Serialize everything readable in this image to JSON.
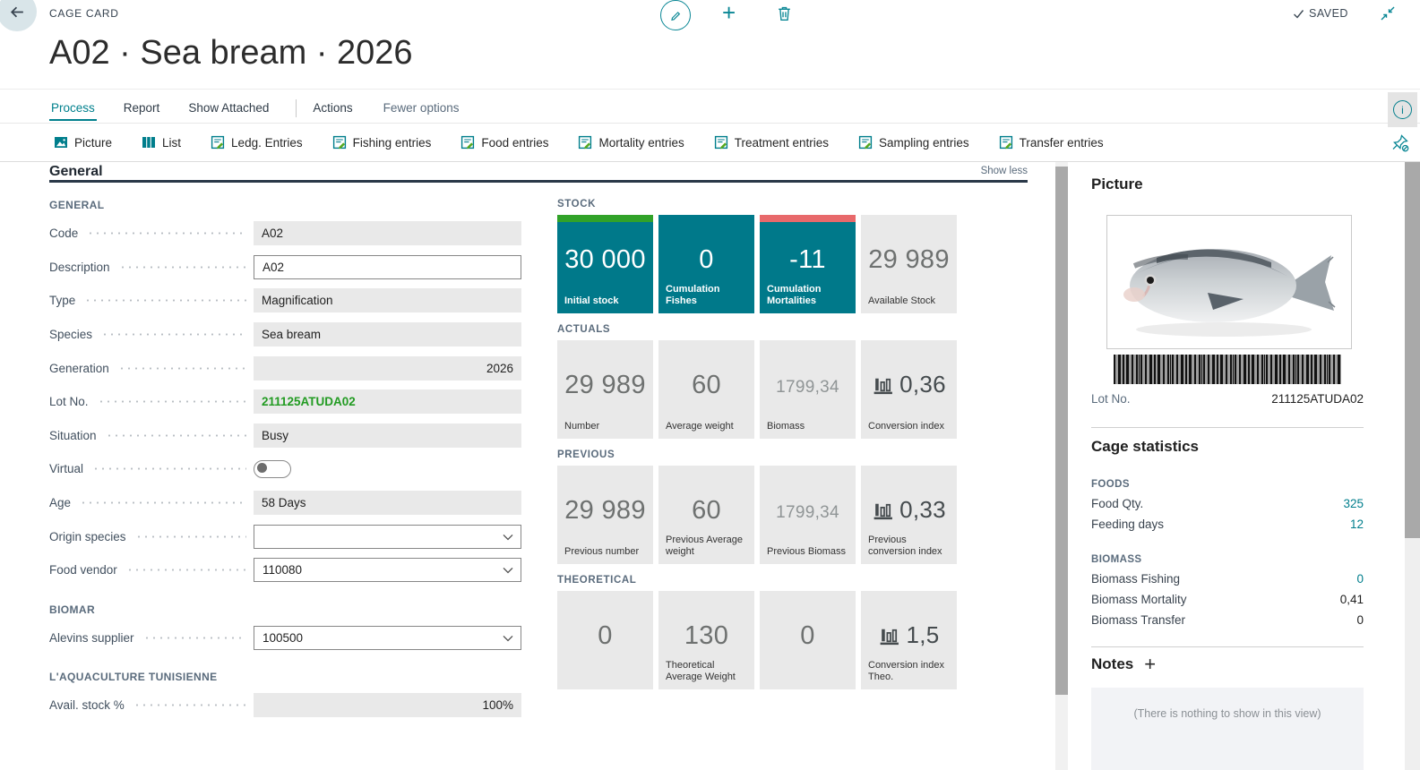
{
  "header": {
    "caption": "CAGE CARD",
    "saved": "SAVED",
    "title": "A02 · Sea bream · 2026"
  },
  "menu": {
    "tabs": [
      {
        "label": "Process",
        "active": true
      },
      {
        "label": "Report",
        "active": false
      },
      {
        "label": "Show Attached",
        "active": false
      }
    ],
    "actions_label": "Actions",
    "fewer_options_label": "Fewer options"
  },
  "ribbon": [
    {
      "icon": "picture-icon",
      "label": "Picture"
    },
    {
      "icon": "list-icon",
      "label": "List"
    },
    {
      "icon": "entries-icon",
      "label": "Ledg. Entries"
    },
    {
      "icon": "entries-icon",
      "label": "Fishing entries"
    },
    {
      "icon": "entries-icon",
      "label": "Food entries"
    },
    {
      "icon": "entries-icon",
      "label": "Mortality entries"
    },
    {
      "icon": "entries-icon",
      "label": "Treatment entries"
    },
    {
      "icon": "entries-icon",
      "label": "Sampling entries"
    },
    {
      "icon": "entries-icon",
      "label": "Transfer entries"
    }
  ],
  "section": {
    "title": "General",
    "toggle": "Show less"
  },
  "form": {
    "items": [
      {
        "kind": "caption",
        "text": "GENERAL"
      },
      {
        "kind": "field",
        "label": "Code",
        "value": "A02",
        "control": "readonly"
      },
      {
        "kind": "field",
        "label": "Description",
        "value": "A02",
        "control": "editable"
      },
      {
        "kind": "field",
        "label": "Type",
        "value": "Magnification",
        "control": "readonly"
      },
      {
        "kind": "field",
        "label": "Species",
        "value": "Sea bream",
        "control": "readonly"
      },
      {
        "kind": "field",
        "label": "Generation",
        "value": "2026",
        "control": "readonly",
        "align": "right"
      },
      {
        "kind": "field",
        "label": "Lot No.",
        "value": "211125ATUDA02",
        "control": "readonly",
        "emphasis": "green-bold"
      },
      {
        "kind": "field",
        "label": "Situation",
        "value": "Busy",
        "control": "readonly"
      },
      {
        "kind": "field",
        "label": "Virtual",
        "value": "off",
        "control": "toggle"
      },
      {
        "kind": "field",
        "label": "Age",
        "value": "58 Days",
        "control": "readonly"
      },
      {
        "kind": "field",
        "label": "Origin species",
        "value": "",
        "control": "combo"
      },
      {
        "kind": "field",
        "label": "Food vendor",
        "value": "110080",
        "control": "combo"
      },
      {
        "kind": "caption",
        "text": "BIOMAR"
      },
      {
        "kind": "field",
        "label": "Alevins supplier",
        "value": "100500",
        "control": "combo"
      },
      {
        "kind": "caption",
        "text": "L'AQUACULTURE TUNISIENNE"
      },
      {
        "kind": "field",
        "label": "Avail. stock %",
        "value": "100%",
        "control": "readonly",
        "align": "right"
      }
    ]
  },
  "tiles": {
    "groups": [
      {
        "caption": "STOCK",
        "items": [
          {
            "value": "30 000",
            "label": "Initial stock",
            "variant": "teal",
            "stripe": "#31a229"
          },
          {
            "value": "0",
            "label": "Cumulation Fishes",
            "variant": "teal",
            "stripe": ""
          },
          {
            "value": "-11",
            "label": "Cumulation Mortalities",
            "variant": "teal",
            "stripe": "#e8696b"
          },
          {
            "value": "29 989",
            "label": "Available Stock",
            "variant": "gray",
            "stripe": ""
          }
        ]
      },
      {
        "caption": "ACTUALS",
        "items": [
          {
            "value": "29 989",
            "label": "Number",
            "variant": "gray"
          },
          {
            "value": "60",
            "label": "Average weight",
            "variant": "gray"
          },
          {
            "value": "1799,34",
            "label": "Biomass",
            "variant": "gray",
            "muted": true
          },
          {
            "value": "0,36",
            "label": "Conversion index",
            "variant": "gray",
            "icon": "bar-chart-icon"
          }
        ]
      },
      {
        "caption": "PREVIOUS",
        "items": [
          {
            "value": "29 989",
            "label": "Previous number",
            "variant": "gray"
          },
          {
            "value": "60",
            "label": "Previous Average weight",
            "variant": "gray"
          },
          {
            "value": "1799,34",
            "label": "Previous Biomass",
            "variant": "gray",
            "muted": true
          },
          {
            "value": "0,33",
            "label": "Previous conversion index",
            "variant": "gray",
            "icon": "bar-chart-icon"
          }
        ]
      },
      {
        "caption": "THEORETICAL",
        "items": [
          {
            "value": "0",
            "label": "",
            "variant": "gray"
          },
          {
            "value": "130",
            "label": "Theoretical Average Weight",
            "variant": "gray"
          },
          {
            "value": "0",
            "label": "",
            "variant": "gray"
          },
          {
            "value": "1,5",
            "label": "Conversion index Theo.",
            "variant": "gray",
            "icon": "bar-chart-icon"
          }
        ]
      }
    ]
  },
  "factbox": {
    "picture": {
      "title": "Picture",
      "lot_label": "Lot No.",
      "lot_value": "211125ATUDA02"
    },
    "statistics": {
      "title": "Cage statistics",
      "groups": [
        {
          "caption": "FOODS",
          "rows": [
            {
              "label": "Food Qty.",
              "value": "325",
              "link": true
            },
            {
              "label": "Feeding days",
              "value": "12",
              "link": true
            }
          ]
        },
        {
          "caption": "BIOMASS",
          "rows": [
            {
              "label": "Biomass Fishing",
              "value": "0",
              "link": true
            },
            {
              "label": "Biomass Mortality",
              "value": "0,41",
              "link": false
            },
            {
              "label": "Biomass Transfer",
              "value": "0",
              "link": false
            }
          ]
        }
      ]
    },
    "notes": {
      "title": "Notes",
      "empty_text": "(There is nothing to show in this view)"
    }
  },
  "colors": {
    "accent_teal": "#007e8c",
    "tile_teal": "#00798a",
    "favorable_green": "#31a229",
    "unfavorable_red": "#e8696b",
    "lot_link_green": "#229b22"
  }
}
